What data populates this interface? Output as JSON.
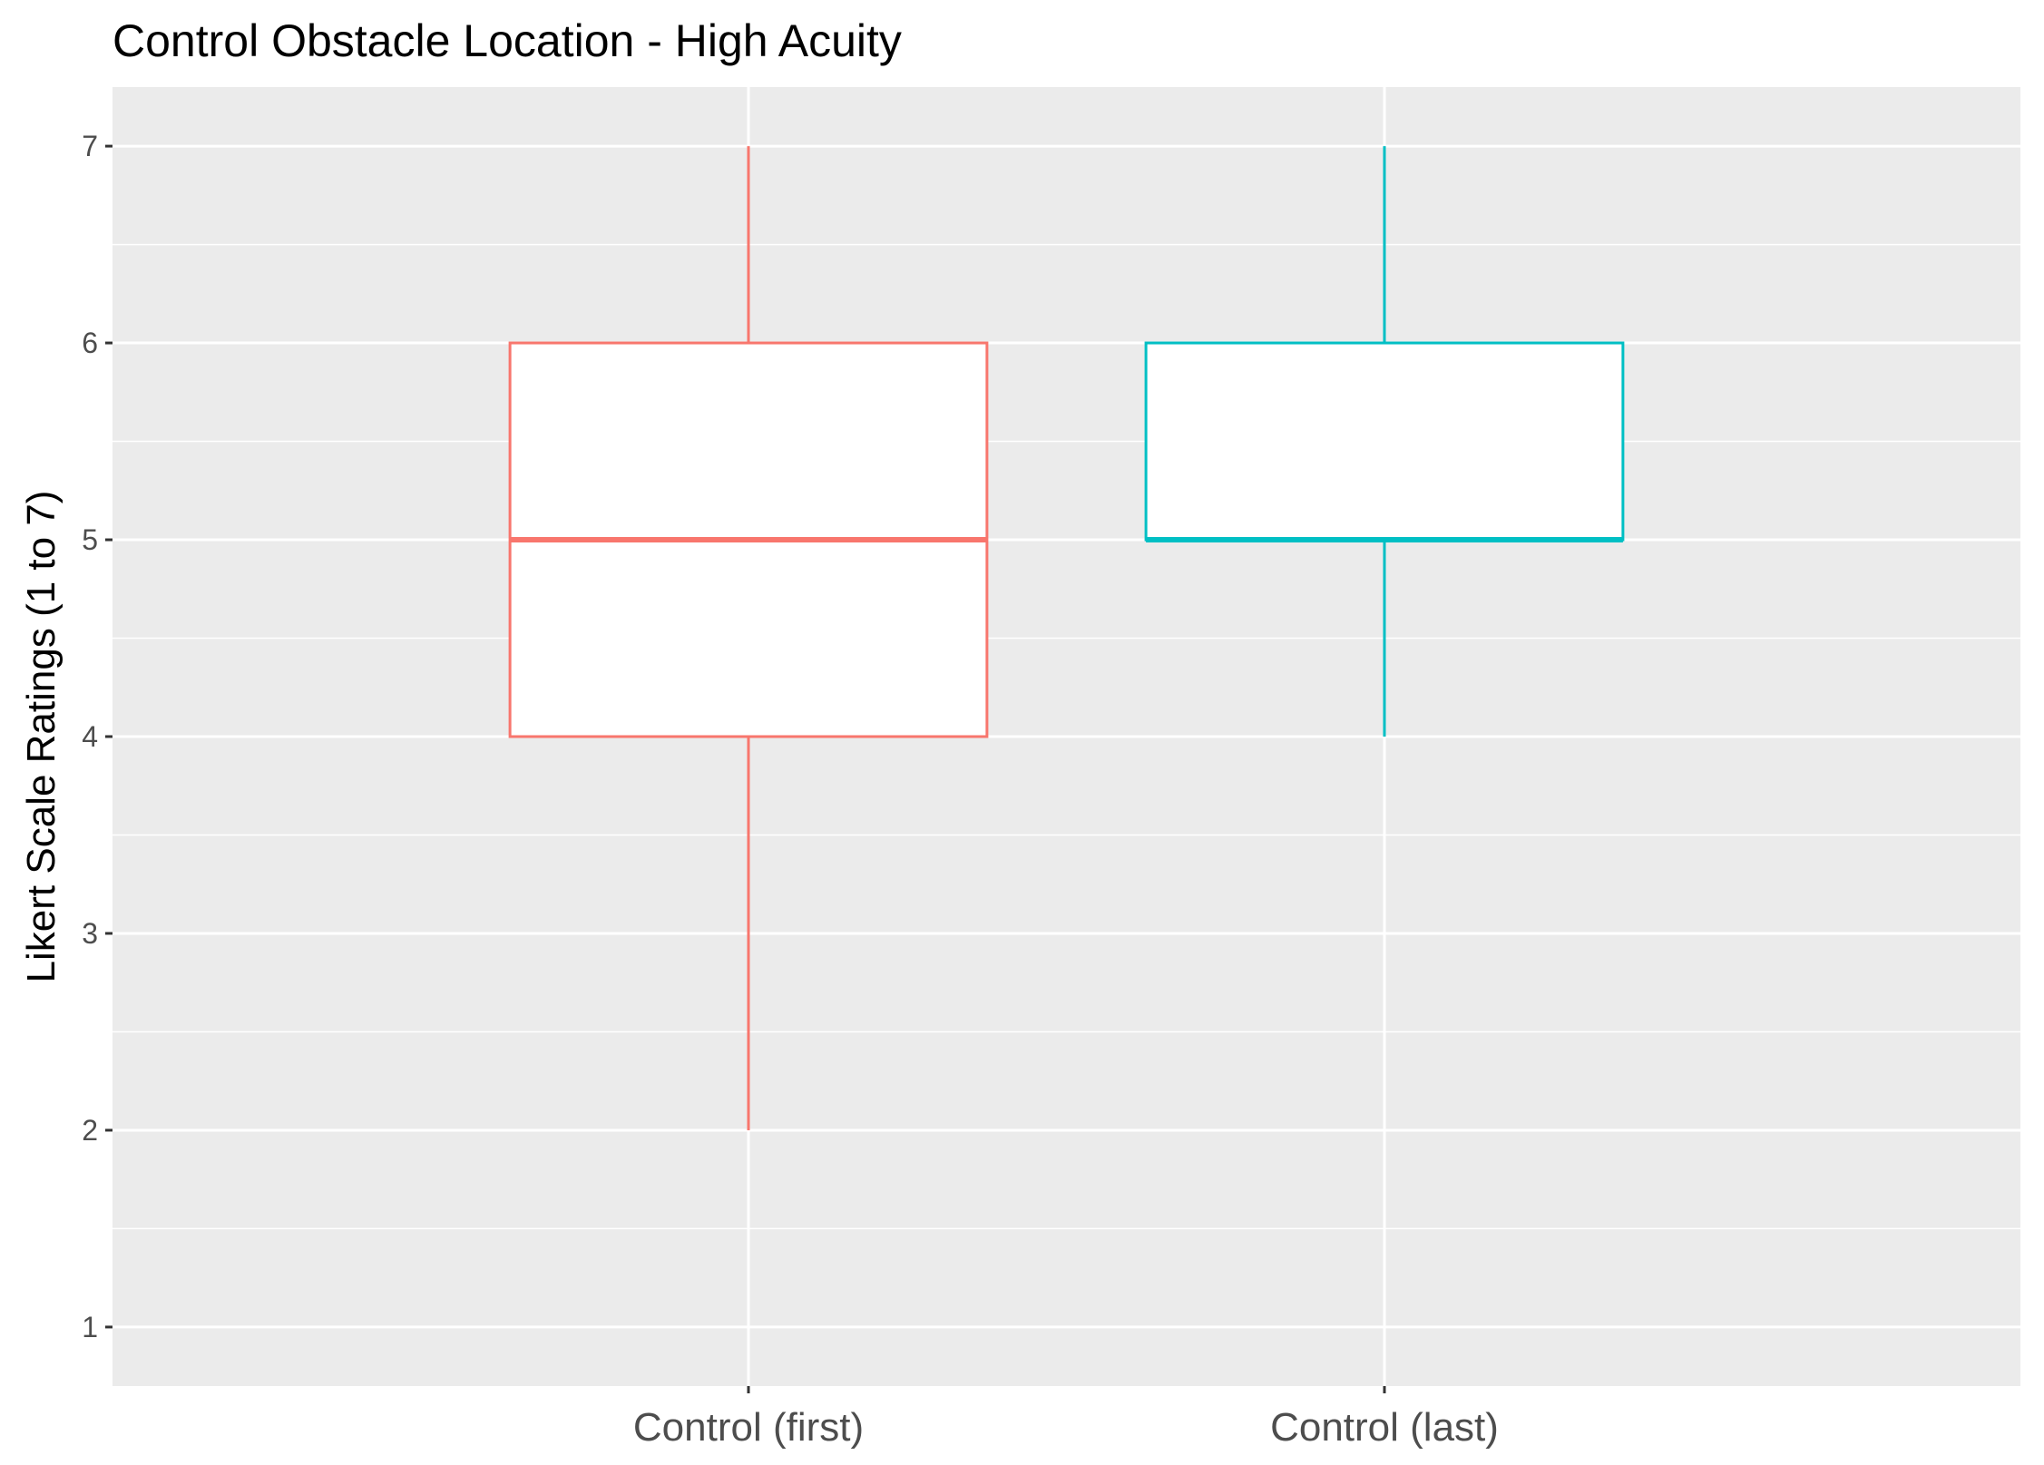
{
  "chart_data": {
    "type": "boxplot",
    "title": "Control Obstacle Location - High Acuity",
    "xlabel": "",
    "ylabel": "Likert Scale Ratings (1 to 7)",
    "ylim": [
      0.7,
      7.3
    ],
    "yticks": [
      1,
      2,
      3,
      4,
      5,
      6,
      7
    ],
    "grid": true,
    "legend": "none",
    "categories": [
      "Control (first)",
      "Control (last)"
    ],
    "boxes": [
      {
        "category": "Control (first)",
        "min": 2,
        "q1": 4,
        "median": 5,
        "q3": 6,
        "max": 7,
        "color": "#F8766D"
      },
      {
        "category": "Control (last)",
        "min": 4,
        "q1": 5,
        "median": 5,
        "q3": 6,
        "max": 7,
        "color": "#00BFC4"
      }
    ],
    "panel_background": "#EBEBEB",
    "grid_color": "#FFFFFF"
  }
}
